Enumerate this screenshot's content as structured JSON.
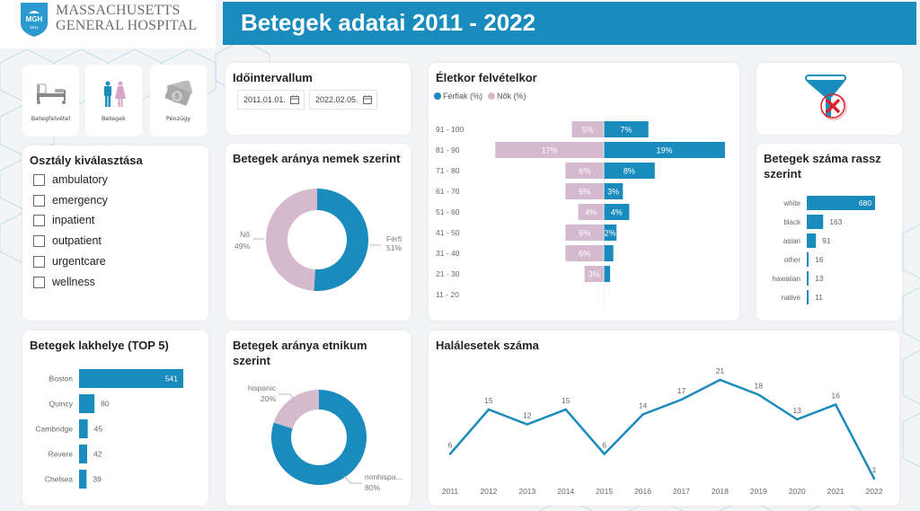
{
  "logo": {
    "line1": "MASSACHUSETTS",
    "line2": "GENERAL HOSPITAL",
    "emblem": "MGH",
    "year": "1811"
  },
  "header": {
    "title": "Betegek adatai 2011 - 2022"
  },
  "colors": {
    "accent": "#1a8bbd",
    "female": "#d5b9cf",
    "header_bg": "#1a8bbd",
    "filter_red": "#e0202a"
  },
  "nav": [
    {
      "label": "Betegfelvétel",
      "icon": "hospital-bed-icon"
    },
    {
      "label": "Betegek",
      "icon": "man-woman-icon"
    },
    {
      "label": "Pénzügy",
      "icon": "money-icon"
    }
  ],
  "department": {
    "title": "Osztály kiválasztása",
    "options": [
      "ambulatory",
      "emergency",
      "inpatient",
      "outpatient",
      "urgentcare",
      "wellness"
    ]
  },
  "date_range": {
    "title": "Időintervallum",
    "start": "2011.01.01.",
    "end": "2022.02.05."
  },
  "filter_reset": {
    "icon": "clear-filter-icon"
  },
  "chart_data": [
    {
      "id": "gender",
      "type": "pie",
      "title": "Betegek aránya nemek szerint",
      "labels": [
        "Férfi",
        "Nő"
      ],
      "values": [
        51,
        49
      ],
      "value_labels": [
        "51%",
        "49%"
      ]
    },
    {
      "id": "age",
      "type": "bar",
      "title": "Életkor felvételkor",
      "orientation": "horizontal-diverging",
      "categories": [
        "91 - 100",
        "81 - 90",
        "71 - 80",
        "61 - 70",
        "51 - 60",
        "41 - 50",
        "31 - 40",
        "21 - 30",
        "11 - 20"
      ],
      "series": [
        {
          "name": "Férfiak (%)",
          "values": [
            7,
            19,
            8,
            3,
            4,
            2,
            1.5,
            1,
            0
          ],
          "labels": [
            "7%",
            "19%",
            "8%",
            "3%",
            "4%",
            "2%",
            "",
            "",
            ""
          ]
        },
        {
          "name": "Nők (%)",
          "values": [
            5,
            17,
            6,
            6,
            4,
            6,
            6,
            3,
            0
          ],
          "labels": [
            "5%",
            "17%",
            "6%",
            "6%",
            "4%",
            "6%",
            "6%",
            "3%",
            ""
          ]
        }
      ]
    },
    {
      "id": "race",
      "type": "bar",
      "title": "Betegek száma rassz szerint",
      "orientation": "horizontal",
      "categories": [
        "white",
        "black",
        "asian",
        "other",
        "hawaiian",
        "native"
      ],
      "values": [
        680,
        163,
        91,
        16,
        13,
        11
      ]
    },
    {
      "id": "residence",
      "type": "bar",
      "title": "Betegek lakhelye (TOP 5)",
      "orientation": "horizontal",
      "categories": [
        "Boston",
        "Quincy",
        "Cambridge",
        "Revere",
        "Chelsea"
      ],
      "values": [
        541,
        80,
        45,
        42,
        39
      ]
    },
    {
      "id": "ethnicity",
      "type": "pie",
      "title": "Betegek aránya etnikum szerint",
      "labels": [
        "nonhispa...",
        "hispanic"
      ],
      "values": [
        80,
        20
      ],
      "value_labels": [
        "80%",
        "20%"
      ]
    },
    {
      "id": "deaths",
      "type": "line",
      "title": "Halálesetek száma",
      "x": [
        "2011",
        "2012",
        "2013",
        "2014",
        "2015",
        "2016",
        "2017",
        "2018",
        "2019",
        "2020",
        "2021",
        "2022"
      ],
      "values": [
        6,
        15,
        12,
        15,
        6,
        14,
        17,
        21,
        18,
        13,
        16,
        1
      ]
    }
  ]
}
